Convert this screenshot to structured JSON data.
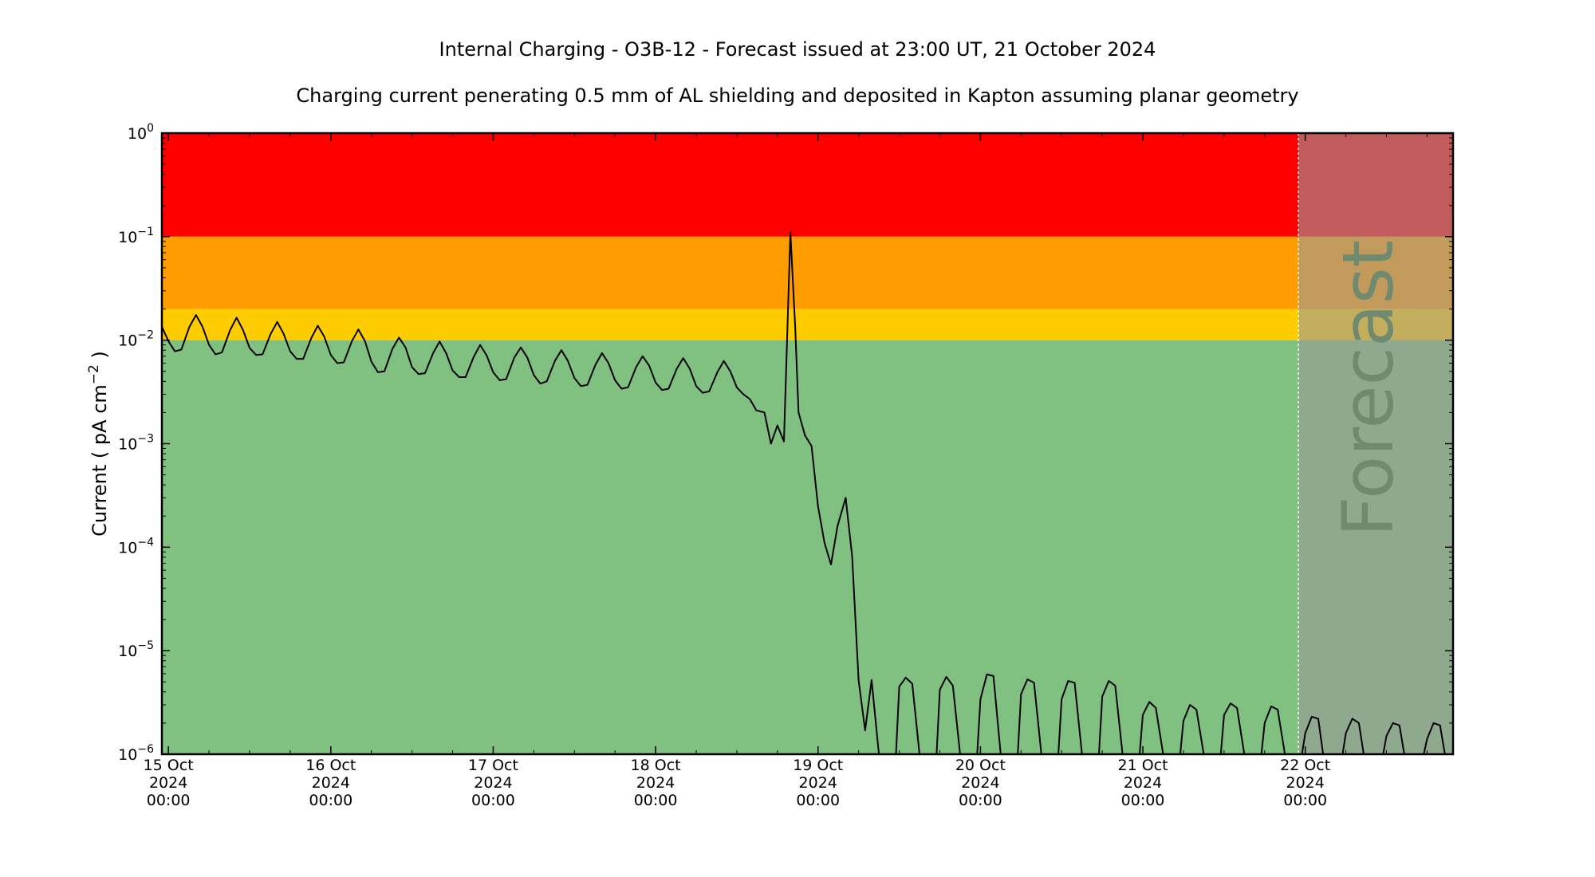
{
  "title": "Internal Charging - O3B-12 - Forecast issued at 23:00 UT, 21 October 2024",
  "subtitle": "Charging current penerating 0.5 mm of AL shielding and deposited in Kapton assuming planar geometry",
  "chart_data": {
    "type": "line",
    "ylabel": "Current ( pA cm",
    "ylabel_exp": "−2",
    "ylabel_close": " )",
    "yscale": "log",
    "ylim": [
      1e-06,
      1
    ],
    "xlim_days": [
      -0.04,
      7.91
    ],
    "y_ticks": [
      {
        "exp": -6,
        "base": "10",
        "sup": "−6"
      },
      {
        "exp": -5,
        "base": "10",
        "sup": "−5"
      },
      {
        "exp": -4,
        "base": "10",
        "sup": "−4"
      },
      {
        "exp": -3,
        "base": "10",
        "sup": "−3"
      },
      {
        "exp": -2,
        "base": "10",
        "sup": "−2"
      },
      {
        "exp": -1,
        "base": "10",
        "sup": "−1"
      },
      {
        "exp": 0,
        "base": "10",
        "sup": "0"
      }
    ],
    "x_ticks": [
      {
        "day": 0,
        "lines": [
          "15 Oct",
          "2024",
          "00:00"
        ]
      },
      {
        "day": 1,
        "lines": [
          "16 Oct",
          "2024",
          "00:00"
        ]
      },
      {
        "day": 2,
        "lines": [
          "17 Oct",
          "2024",
          "00:00"
        ]
      },
      {
        "day": 3,
        "lines": [
          "18 Oct",
          "2024",
          "00:00"
        ]
      },
      {
        "day": 4,
        "lines": [
          "19 Oct",
          "2024",
          "00:00"
        ]
      },
      {
        "day": 5,
        "lines": [
          "20 Oct",
          "2024",
          "00:00"
        ]
      },
      {
        "day": 6,
        "lines": [
          "21 Oct",
          "2024",
          "00:00"
        ]
      },
      {
        "day": 7,
        "lines": [
          "22 Oct",
          "2024",
          "00:00"
        ]
      }
    ],
    "bands": [
      {
        "from": 0.1,
        "to": 1,
        "color": "#ff0000"
      },
      {
        "from": 0.02,
        "to": 0.1,
        "color": "#ff9d00"
      },
      {
        "from": 0.01,
        "to": 0.02,
        "color": "#ffcc00"
      },
      {
        "from": 1e-06,
        "to": 0.01,
        "color": "#80c080"
      }
    ],
    "forecast": {
      "start_day": 6.958,
      "label": "Forecast",
      "overlay_color": "#999999",
      "overlay_opacity": 0.6
    },
    "series": [
      {
        "color": "#000000",
        "points": [
          [
            -0.04,
            0.0135
          ],
          [
            0.0,
            0.0098
          ],
          [
            0.04,
            0.0078
          ],
          [
            0.08,
            0.0081
          ],
          [
            0.13,
            0.0135
          ],
          [
            0.17,
            0.0175
          ],
          [
            0.21,
            0.0135
          ],
          [
            0.25,
            0.009
          ],
          [
            0.29,
            0.0073
          ],
          [
            0.33,
            0.0076
          ],
          [
            0.38,
            0.0125
          ],
          [
            0.42,
            0.0165
          ],
          [
            0.46,
            0.0125
          ],
          [
            0.5,
            0.0084
          ],
          [
            0.54,
            0.0072
          ],
          [
            0.58,
            0.0073
          ],
          [
            0.63,
            0.0115
          ],
          [
            0.67,
            0.015
          ],
          [
            0.71,
            0.0115
          ],
          [
            0.75,
            0.0078
          ],
          [
            0.79,
            0.0066
          ],
          [
            0.83,
            0.0066
          ],
          [
            0.88,
            0.0105
          ],
          [
            0.92,
            0.0138
          ],
          [
            0.96,
            0.0108
          ],
          [
            1.0,
            0.0072
          ],
          [
            1.04,
            0.006
          ],
          [
            1.08,
            0.0061
          ],
          [
            1.13,
            0.0098
          ],
          [
            1.17,
            0.0127
          ],
          [
            1.21,
            0.0098
          ],
          [
            1.25,
            0.0062
          ],
          [
            1.29,
            0.0049
          ],
          [
            1.33,
            0.005
          ],
          [
            1.38,
            0.0083
          ],
          [
            1.42,
            0.0106
          ],
          [
            1.46,
            0.0085
          ],
          [
            1.5,
            0.0055
          ],
          [
            1.54,
            0.0047
          ],
          [
            1.58,
            0.0048
          ],
          [
            1.63,
            0.0075
          ],
          [
            1.67,
            0.0097
          ],
          [
            1.71,
            0.0075
          ],
          [
            1.75,
            0.0051
          ],
          [
            1.79,
            0.0044
          ],
          [
            1.83,
            0.0044
          ],
          [
            1.88,
            0.0069
          ],
          [
            1.92,
            0.009
          ],
          [
            1.96,
            0.0071
          ],
          [
            2.0,
            0.0049
          ],
          [
            2.04,
            0.0041
          ],
          [
            2.08,
            0.0042
          ],
          [
            2.13,
            0.0068
          ],
          [
            2.17,
            0.0085
          ],
          [
            2.21,
            0.0068
          ],
          [
            2.25,
            0.0046
          ],
          [
            2.29,
            0.0038
          ],
          [
            2.33,
            0.004
          ],
          [
            2.38,
            0.0063
          ],
          [
            2.42,
            0.008
          ],
          [
            2.46,
            0.0063
          ],
          [
            2.5,
            0.0043
          ],
          [
            2.54,
            0.0036
          ],
          [
            2.58,
            0.0037
          ],
          [
            2.63,
            0.0058
          ],
          [
            2.67,
            0.0075
          ],
          [
            2.71,
            0.006
          ],
          [
            2.75,
            0.0041
          ],
          [
            2.79,
            0.0034
          ],
          [
            2.83,
            0.0035
          ],
          [
            2.88,
            0.0055
          ],
          [
            2.92,
            0.007
          ],
          [
            2.96,
            0.0057
          ],
          [
            3.0,
            0.0039
          ],
          [
            3.04,
            0.0033
          ],
          [
            3.08,
            0.0034
          ],
          [
            3.13,
            0.0053
          ],
          [
            3.17,
            0.0067
          ],
          [
            3.21,
            0.0053
          ],
          [
            3.25,
            0.0036
          ],
          [
            3.29,
            0.0031
          ],
          [
            3.33,
            0.0032
          ],
          [
            3.38,
            0.0049
          ],
          [
            3.42,
            0.0063
          ],
          [
            3.46,
            0.005
          ],
          [
            3.5,
            0.0035
          ],
          [
            3.54,
            0.003
          ],
          [
            3.58,
            0.0027
          ],
          [
            3.62,
            0.0021
          ],
          [
            3.67,
            0.002
          ],
          [
            3.71,
            0.001
          ],
          [
            3.75,
            0.0015
          ],
          [
            3.79,
            0.00105
          ],
          [
            3.83,
            0.11
          ],
          [
            3.86,
            0.013
          ],
          [
            3.88,
            0.002
          ],
          [
            3.92,
            0.0012
          ],
          [
            3.96,
            0.00095
          ],
          [
            4.0,
            0.00025
          ],
          [
            4.04,
            0.00011
          ],
          [
            4.08,
            6.8e-05
          ],
          [
            4.12,
            0.00016
          ],
          [
            4.17,
            0.0003
          ],
          [
            4.21,
            8.2e-05
          ],
          [
            4.25,
            5.2e-06
          ],
          [
            4.29,
            1.7e-06
          ],
          [
            4.33,
            5.2e-06
          ],
          [
            4.375,
            1e-06
          ],
          [
            4.48,
            1e-06
          ],
          [
            4.5,
            4.5e-06
          ],
          [
            4.54,
            5.5e-06
          ],
          [
            4.58,
            4.8e-06
          ],
          [
            4.625,
            1e-06
          ],
          [
            4.73,
            1e-06
          ],
          [
            4.75,
            4.2e-06
          ],
          [
            4.79,
            5.6e-06
          ],
          [
            4.83,
            4.6e-06
          ],
          [
            4.875,
            1e-06
          ],
          [
            4.98,
            1e-06
          ],
          [
            5.0,
            3.4e-06
          ],
          [
            5.04,
            5.9e-06
          ],
          [
            5.08,
            5.7e-06
          ],
          [
            5.125,
            1e-06
          ],
          [
            5.23,
            1e-06
          ],
          [
            5.25,
            3.8e-06
          ],
          [
            5.29,
            5.3e-06
          ],
          [
            5.33,
            4.9e-06
          ],
          [
            5.375,
            1e-06
          ],
          [
            5.48,
            1e-06
          ],
          [
            5.5,
            3.4e-06
          ],
          [
            5.54,
            5.1e-06
          ],
          [
            5.58,
            4.9e-06
          ],
          [
            5.625,
            1e-06
          ],
          [
            5.73,
            1e-06
          ],
          [
            5.75,
            3.6e-06
          ],
          [
            5.79,
            5.1e-06
          ],
          [
            5.83,
            4.6e-06
          ],
          [
            5.875,
            1e-06
          ],
          [
            5.98,
            1e-06
          ],
          [
            6.0,
            2.4e-06
          ],
          [
            6.04,
            3.2e-06
          ],
          [
            6.08,
            2.8e-06
          ],
          [
            6.125,
            1e-06
          ],
          [
            6.23,
            1e-06
          ],
          [
            6.25,
            2.1e-06
          ],
          [
            6.29,
            3e-06
          ],
          [
            6.33,
            2.7e-06
          ],
          [
            6.375,
            1e-06
          ],
          [
            6.48,
            1e-06
          ],
          [
            6.5,
            2.4e-06
          ],
          [
            6.54,
            3.1e-06
          ],
          [
            6.58,
            2.8e-06
          ],
          [
            6.625,
            1e-06
          ],
          [
            6.73,
            1e-06
          ],
          [
            6.75,
            2e-06
          ],
          [
            6.79,
            2.9e-06
          ],
          [
            6.83,
            2.7e-06
          ],
          [
            6.875,
            1e-06
          ]
        ]
      },
      {
        "color": "#000000",
        "points": [
          [
            6.98,
            1e-06
          ],
          [
            7.0,
            1.6e-06
          ],
          [
            7.04,
            2.3e-06
          ],
          [
            7.08,
            2.2e-06
          ],
          [
            7.11,
            1e-06
          ],
          [
            7.23,
            1e-06
          ],
          [
            7.25,
            1.6e-06
          ],
          [
            7.29,
            2.2e-06
          ],
          [
            7.33,
            2e-06
          ],
          [
            7.36,
            1e-06
          ],
          [
            7.48,
            1e-06
          ],
          [
            7.5,
            1.5e-06
          ],
          [
            7.54,
            2e-06
          ],
          [
            7.58,
            1.9e-06
          ],
          [
            7.61,
            1e-06
          ],
          [
            7.73,
            1e-06
          ],
          [
            7.75,
            1.4e-06
          ],
          [
            7.79,
            2e-06
          ],
          [
            7.83,
            1.9e-06
          ],
          [
            7.86,
            1e-06
          ]
        ]
      }
    ]
  }
}
